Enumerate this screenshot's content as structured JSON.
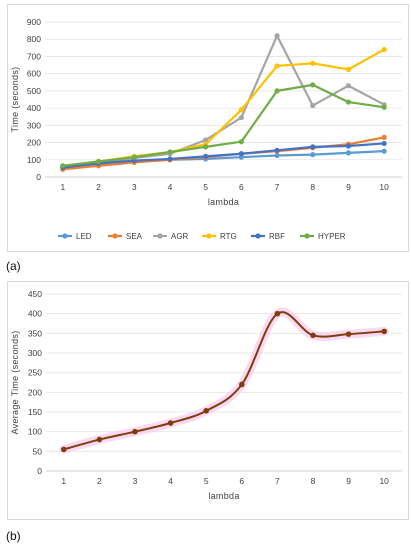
{
  "captions": [
    "(a)",
    "(b)"
  ],
  "chart_data": [
    {
      "type": "line",
      "xlabel": "lambda",
      "ylabel": "Time (seconds)",
      "x": [
        1,
        2,
        3,
        4,
        5,
        6,
        7,
        8,
        9,
        10
      ],
      "ylim": [
        0,
        900
      ],
      "yticks": [
        0,
        100,
        200,
        300,
        400,
        500,
        600,
        700,
        800,
        900
      ],
      "grid": true,
      "legend_position": "bottom",
      "series": [
        {
          "name": "LED",
          "color": "#5b9bd5",
          "values": [
            55,
            75,
            90,
            100,
            105,
            115,
            125,
            130,
            140,
            150
          ]
        },
        {
          "name": "SEA",
          "color": "#ed7d31",
          "values": [
            45,
            65,
            85,
            100,
            115,
            135,
            150,
            170,
            190,
            230
          ]
        },
        {
          "name": "AGR",
          "color": "#a5a5a5",
          "values": [
            60,
            85,
            110,
            135,
            215,
            345,
            820,
            415,
            530,
            420
          ]
        },
        {
          "name": "RTG",
          "color": "#ffc000",
          "values": [
            65,
            90,
            120,
            145,
            190,
            390,
            645,
            660,
            625,
            740
          ]
        },
        {
          "name": "RBF",
          "color": "#4472c4",
          "values": [
            55,
            80,
            95,
            105,
            120,
            135,
            155,
            175,
            180,
            195
          ]
        },
        {
          "name": "HYPER",
          "color": "#70ad47",
          "values": [
            65,
            90,
            115,
            145,
            175,
            205,
            500,
            535,
            435,
            405
          ]
        }
      ]
    },
    {
      "type": "line",
      "xlabel": "lambda",
      "ylabel": "Average Time (seconds)",
      "x": [
        1,
        2,
        3,
        4,
        5,
        6,
        7,
        8,
        9,
        10
      ],
      "ylim": [
        0,
        450
      ],
      "yticks": [
        0,
        50,
        100,
        150,
        200,
        250,
        300,
        350,
        400,
        450
      ],
      "grid": true,
      "series": [
        {
          "color": "#843c0c",
          "values": [
            55,
            80,
            100,
            122,
            153,
            220,
            400,
            345,
            348,
            355
          ]
        }
      ]
    }
  ]
}
